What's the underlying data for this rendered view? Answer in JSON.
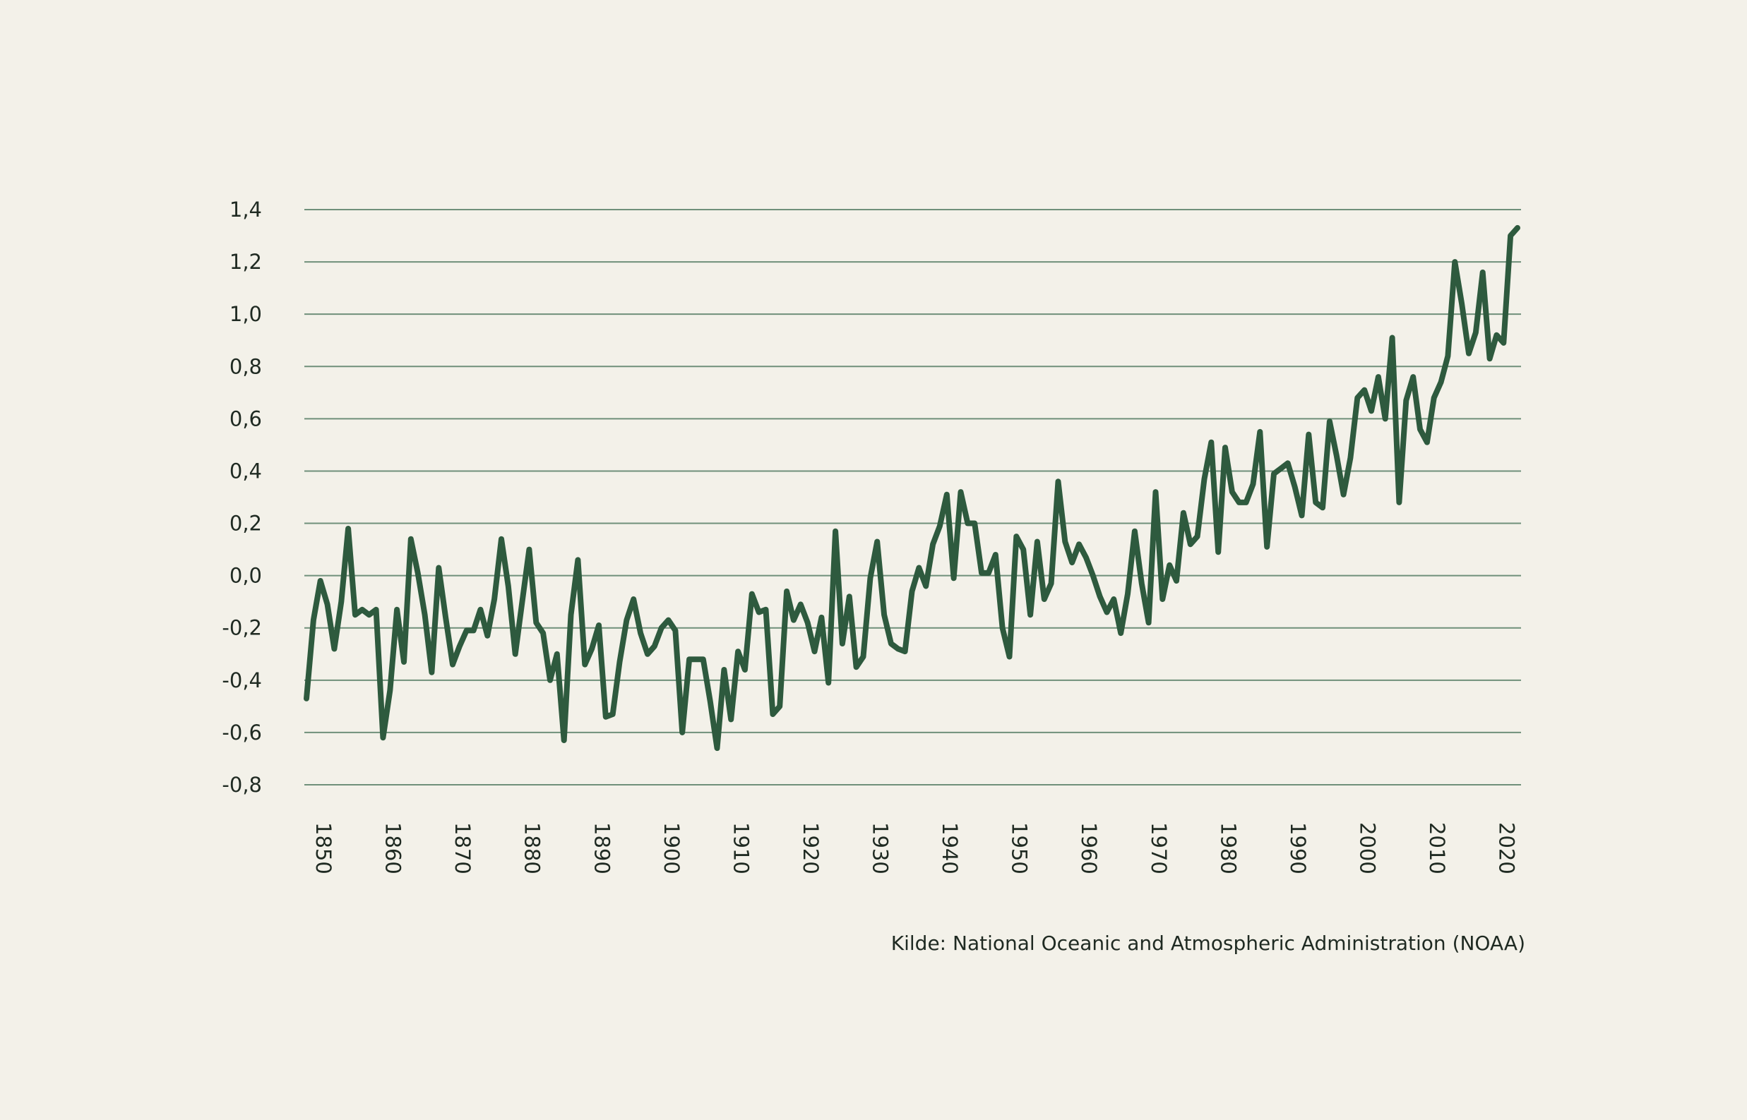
{
  "chart_data": {
    "type": "line",
    "title": "",
    "xlabel": "",
    "ylabel": "",
    "ylim": [
      -0.8,
      1.4
    ],
    "xlim": [
      1850,
      2024
    ],
    "grid": true,
    "y_ticks": [
      1.4,
      1.2,
      1.0,
      0.8,
      0.6,
      0.4,
      0.2,
      0.0,
      -0.2,
      -0.4,
      -0.6,
      -0.8
    ],
    "y_tick_labels": [
      "1,4",
      "1,2",
      "1,0",
      "0,8",
      "0,6",
      "0,4",
      "0,2",
      "0,0",
      "-0,2",
      "-0,4",
      "-0,6",
      "-0,8"
    ],
    "x_ticks": [
      1850,
      1860,
      1870,
      1880,
      1890,
      1900,
      1910,
      1920,
      1930,
      1940,
      1950,
      1960,
      1970,
      1980,
      1990,
      2000,
      2010,
      2020
    ],
    "x_tick_labels": [
      "1850",
      "1860",
      "1870",
      "1880",
      "1890",
      "1900",
      "1910",
      "1920",
      "1930",
      "1940",
      "1950",
      "1960",
      "1970",
      "1980",
      "1990",
      "2000",
      "2010",
      "2020"
    ],
    "line_color": "#2e5a3e",
    "x_start": 1850,
    "values": [
      -0.47,
      -0.17,
      -0.02,
      -0.11,
      -0.28,
      -0.1,
      0.18,
      -0.15,
      -0.13,
      -0.15,
      -0.13,
      -0.62,
      -0.44,
      -0.13,
      -0.33,
      0.14,
      0.01,
      -0.15,
      -0.37,
      0.03,
      -0.16,
      -0.34,
      -0.27,
      -0.21,
      -0.21,
      -0.13,
      -0.23,
      -0.09,
      0.14,
      -0.04,
      -0.3,
      -0.1,
      0.1,
      -0.18,
      -0.22,
      -0.4,
      -0.3,
      -0.63,
      -0.15,
      0.06,
      -0.34,
      -0.28,
      -0.19,
      -0.54,
      -0.53,
      -0.33,
      -0.17,
      -0.09,
      -0.22,
      -0.3,
      -0.27,
      -0.2,
      -0.17,
      -0.21,
      -0.6,
      -0.32,
      -0.32,
      -0.32,
      -0.48,
      -0.66,
      -0.36,
      -0.55,
      -0.29,
      -0.36,
      -0.07,
      -0.14,
      -0.13,
      -0.53,
      -0.5,
      -0.06,
      -0.17,
      -0.11,
      -0.18,
      -0.29,
      -0.16,
      -0.41,
      0.17,
      -0.26,
      -0.08,
      -0.35,
      -0.31,
      -0.01,
      0.13,
      -0.15,
      -0.26,
      -0.28,
      -0.29,
      -0.06,
      0.03,
      -0.04,
      0.12,
      0.19,
      0.31,
      -0.01,
      0.32,
      0.2,
      0.2,
      0.01,
      0.01,
      0.08,
      -0.2,
      -0.31,
      0.15,
      0.1,
      -0.15,
      0.13,
      -0.09,
      -0.03,
      0.36,
      0.13,
      0.05,
      0.12,
      0.07,
      0.0,
      -0.08,
      -0.14,
      -0.09,
      -0.22,
      -0.07,
      0.17,
      -0.03,
      -0.18,
      0.32,
      -0.09,
      0.04,
      -0.02,
      0.24,
      0.12,
      0.15,
      0.37,
      0.51,
      0.09,
      0.49,
      0.32,
      0.28,
      0.28,
      0.35,
      0.55,
      0.11,
      0.39,
      0.41,
      0.43,
      0.34,
      0.23,
      0.54,
      0.28,
      0.26,
      0.59,
      0.46,
      0.31,
      0.45,
      0.68,
      0.71,
      0.63,
      0.76,
      0.6,
      0.91,
      0.28,
      0.67,
      0.76,
      0.56,
      0.51,
      0.68,
      0.74,
      0.84,
      1.2,
      1.04,
      0.85,
      0.93,
      1.16,
      0.83,
      0.92,
      0.89,
      1.3,
      1.33
    ]
  },
  "source": "Kilde: National Oceanic and Atmospheric Administration (NOAA)"
}
